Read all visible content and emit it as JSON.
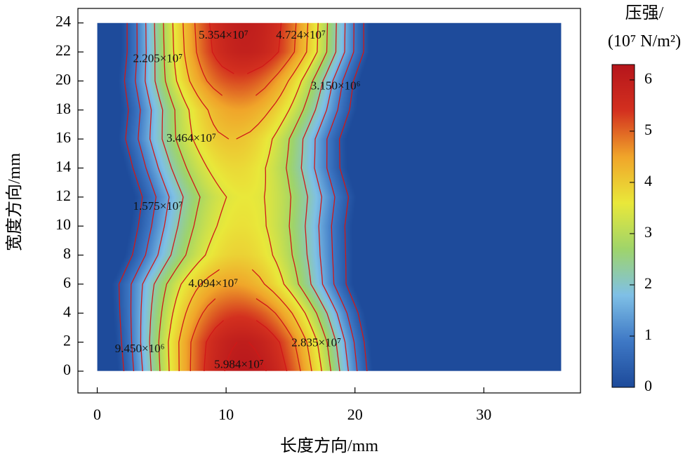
{
  "chart_data": {
    "type": "heatmap",
    "subtype": "filled-contour",
    "title": "",
    "xlabel": "长度方向/mm",
    "ylabel": "宽度方向/mm",
    "xlim": [
      -1.5,
      37.5
    ],
    "ylim": [
      -1.5,
      25
    ],
    "xticks": [
      0,
      10,
      20,
      30
    ],
    "yticks": [
      0,
      2,
      4,
      6,
      8,
      10,
      12,
      14,
      16,
      18,
      20,
      22,
      24
    ],
    "data_extent": {
      "x": [
        0,
        36
      ],
      "y": [
        0,
        24
      ]
    },
    "colormap": [
      "#1d4a9a",
      "#3e78c5",
      "#7fc0e6",
      "#9fd46a",
      "#e9e83a",
      "#f0a52a",
      "#d3301f",
      "#b5151b"
    ],
    "contour_line_color": "#d01818",
    "colorbar": {
      "title_line1": "压强/",
      "title_line2": "(10⁷ N/m²)",
      "min": 0,
      "max": 6.3,
      "ticks": [
        0,
        1,
        2,
        3,
        4,
        5,
        6
      ]
    },
    "profile": {
      "y": [
        0,
        2,
        4,
        6,
        8,
        10,
        12,
        14,
        16,
        18,
        20,
        22,
        24
      ],
      "center_x": [
        11.5,
        11.3,
        11,
        10.5,
        11,
        11.2,
        11.5,
        10.8,
        10.5,
        11,
        11,
        11.5,
        11.5
      ],
      "peak_value": [
        6.2,
        6.0,
        5.3,
        4.5,
        3.9,
        3.7,
        3.6,
        3.8,
        4.1,
        4.5,
        5.2,
        5.9,
        6.0
      ],
      "fall_width": [
        8.0,
        8.0,
        7.9,
        7.6,
        7.2,
        7.0,
        7.0,
        7.0,
        7.2,
        7.4,
        7.6,
        7.8,
        7.8
      ]
    },
    "annotations": [
      {
        "text": "5.354×10⁷",
        "x": 9.8,
        "y": 23.1
      },
      {
        "text": "4.724×10⁷",
        "x": 15.8,
        "y": 23.1
      },
      {
        "text": "2.205×10⁷",
        "x": 4.7,
        "y": 21.5
      },
      {
        "text": "3.150×10⁶",
        "x": 18.5,
        "y": 19.6
      },
      {
        "text": "3.464×10⁷",
        "x": 7.3,
        "y": 16.0
      },
      {
        "text": "1.575×10⁷",
        "x": 4.7,
        "y": 11.3
      },
      {
        "text": "4.094×10⁷",
        "x": 9.0,
        "y": 6.0
      },
      {
        "text": "2.835×10⁷",
        "x": 17.0,
        "y": 1.9
      },
      {
        "text": "9.450×10⁶",
        "x": 3.3,
        "y": 1.5
      },
      {
        "text": "5.984×10⁷",
        "x": 11.0,
        "y": 0.4
      }
    ]
  }
}
